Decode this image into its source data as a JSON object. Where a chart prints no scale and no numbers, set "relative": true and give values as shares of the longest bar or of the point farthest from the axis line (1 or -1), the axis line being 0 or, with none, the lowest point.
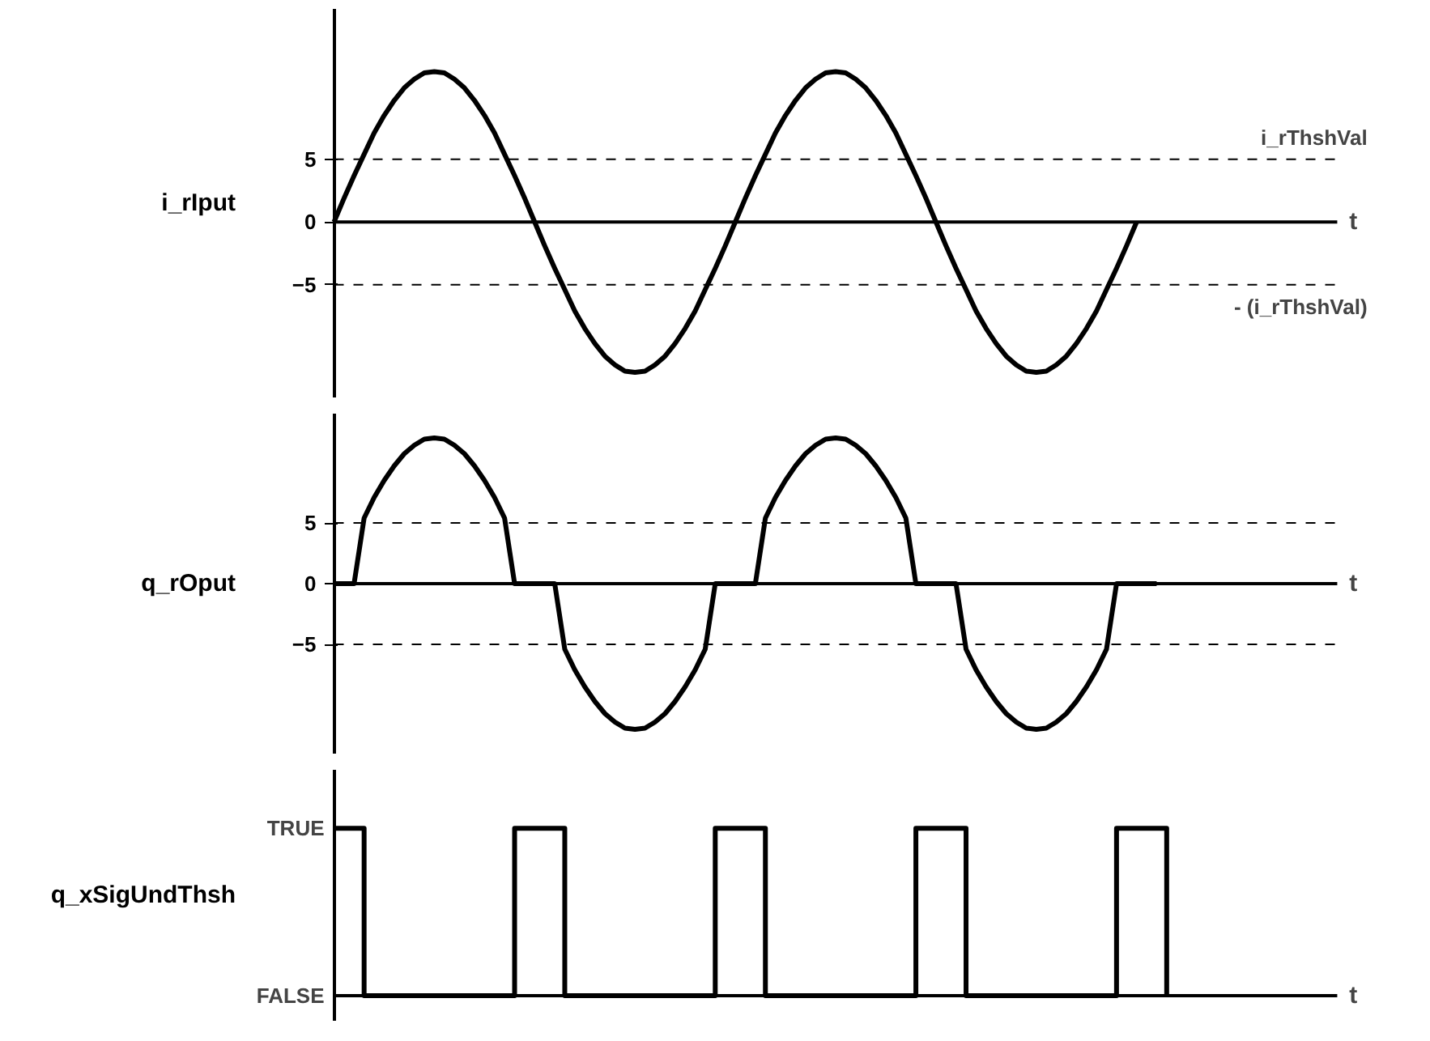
{
  "chart_data": [
    {
      "type": "line",
      "ylabel": "i_rIput",
      "xlabel": "t",
      "tick_labels": "y",
      "ylim": [
        -14,
        17
      ],
      "yticks": [
        -5,
        0,
        5
      ],
      "categories": [
        null,
        null,
        null,
        null,
        null,
        null,
        null,
        null,
        null,
        null,
        null,
        null,
        null,
        null,
        null,
        null,
        null,
        null,
        null,
        null,
        null,
        null,
        null,
        null,
        null,
        null,
        null,
        null,
        null,
        null,
        null,
        null,
        null,
        null,
        null,
        null,
        null,
        null,
        null,
        null,
        null,
        null,
        null,
        null,
        null,
        null,
        null,
        null,
        null,
        null,
        null,
        null,
        null,
        null,
        null,
        null,
        null,
        null,
        null,
        null,
        null,
        null,
        null,
        null,
        null,
        null,
        null,
        null,
        null,
        null,
        null,
        null,
        null,
        null,
        null,
        null,
        null,
        null,
        null,
        null,
        null,
        null,
        null,
        null,
        null,
        null,
        null,
        null,
        null,
        null,
        null,
        null,
        null,
        null,
        null,
        null,
        null,
        null,
        null,
        null
      ],
      "series": [
        {
          "color": "#000000",
          "values": [
            0,
            1.9,
            3.7,
            5.4,
            7.1,
            8.5,
            9.7,
            10.7,
            11.4,
            11.9,
            12,
            11.9,
            11.4,
            10.7,
            9.7,
            8.5,
            7.1,
            5.4,
            3.7,
            1.9,
            0,
            -1.9,
            -3.7,
            -5.4,
            -7.1,
            -8.5,
            -9.7,
            -10.7,
            -11.4,
            -11.9,
            -12,
            -11.9,
            -11.4,
            -10.7,
            -9.7,
            -8.5,
            -7.1,
            -5.4,
            -3.7,
            -1.9,
            0,
            1.9,
            3.7,
            5.4,
            7.1,
            8.5,
            9.7,
            10.7,
            11.4,
            11.9,
            12,
            11.9,
            11.4,
            10.7,
            9.7,
            8.5,
            7.1,
            5.4,
            3.7,
            1.9,
            0,
            -1.9,
            -3.7,
            -5.4,
            -7.1,
            -8.5,
            -9.7,
            -10.7,
            -11.4,
            -11.9,
            -12,
            -11.9,
            -11.4,
            -10.7,
            -9.7,
            -8.5,
            -7.1,
            -5.4,
            -3.7,
            -1.9,
            0,
            null,
            null,
            null,
            null,
            null,
            null,
            null,
            null,
            null,
            null,
            null,
            null,
            null,
            null,
            null,
            null,
            null,
            null,
            null
          ]
        }
      ],
      "ref_lines": [
        {
          "axis": "y",
          "value": 5,
          "line_style": "dashed"
        },
        {
          "axis": "y",
          "value": -5,
          "line_style": "dashed"
        }
      ],
      "annotations": [
        {
          "text": "i_rThshVal",
          "y": 5
        },
        {
          "text": "- (i_rThshVal)",
          "y": -5
        }
      ]
    },
    {
      "type": "line",
      "ylabel": "q_rOput",
      "xlabel": "t",
      "tick_labels": "y",
      "ylim": [
        -14,
        14
      ],
      "yticks": [
        -5,
        0,
        5
      ],
      "categories": [
        null,
        null,
        null,
        null,
        null,
        null,
        null,
        null,
        null,
        null,
        null,
        null,
        null,
        null,
        null,
        null,
        null,
        null,
        null,
        null,
        null,
        null,
        null,
        null,
        null,
        null,
        null,
        null,
        null,
        null,
        null,
        null,
        null,
        null,
        null,
        null,
        null,
        null,
        null,
        null,
        null,
        null,
        null,
        null,
        null,
        null,
        null,
        null,
        null,
        null,
        null,
        null,
        null,
        null,
        null,
        null,
        null,
        null,
        null,
        null,
        null,
        null,
        null,
        null,
        null,
        null,
        null,
        null,
        null,
        null,
        null,
        null,
        null,
        null,
        null,
        null,
        null,
        null,
        null,
        null,
        null,
        null,
        null,
        null,
        null,
        null,
        null,
        null,
        null,
        null,
        null,
        null,
        null,
        null,
        null,
        null,
        null,
        null,
        null,
        null
      ],
      "series": [
        {
          "color": "#000000",
          "values": [
            0,
            0,
            0,
            5.4,
            7.1,
            8.5,
            9.7,
            10.7,
            11.4,
            11.9,
            12,
            11.9,
            11.4,
            10.7,
            9.7,
            8.5,
            7.1,
            5.4,
            0,
            0,
            0,
            0,
            0,
            -5.4,
            -7.1,
            -8.5,
            -9.7,
            -10.7,
            -11.4,
            -11.9,
            -12,
            -11.9,
            -11.4,
            -10.7,
            -9.7,
            -8.5,
            -7.1,
            -5.4,
            0,
            0,
            0,
            0,
            0,
            5.4,
            7.1,
            8.5,
            9.7,
            10.7,
            11.4,
            11.9,
            12,
            11.9,
            11.4,
            10.7,
            9.7,
            8.5,
            7.1,
            5.4,
            0,
            0,
            0,
            0,
            0,
            -5.4,
            -7.1,
            -8.5,
            -9.7,
            -10.7,
            -11.4,
            -11.9,
            -12,
            -11.9,
            -11.4,
            -10.7,
            -9.7,
            -8.5,
            -7.1,
            -5.4,
            0,
            0,
            0,
            0,
            0,
            null,
            null,
            null,
            null,
            null,
            null,
            null,
            null,
            null,
            null,
            null,
            null,
            null,
            null,
            null,
            null,
            null
          ]
        }
      ],
      "ref_lines": [
        {
          "axis": "y",
          "value": 5,
          "line_style": "dashed"
        },
        {
          "axis": "y",
          "value": -5,
          "line_style": "dashed"
        }
      ]
    },
    {
      "type": "step",
      "ylabel": "q_xSigUndThsh",
      "xlabel": "t",
      "relative": true,
      "tick_labels": false,
      "annotations": [
        "TRUE",
        "FALSE"
      ],
      "categories": [
        null,
        null,
        null,
        null,
        null,
        null,
        null,
        null,
        null,
        null,
        null,
        null,
        null,
        null,
        null,
        null,
        null,
        null,
        null,
        null,
        null,
        null,
        null,
        null,
        null,
        null,
        null,
        null,
        null,
        null,
        null,
        null,
        null,
        null,
        null,
        null,
        null,
        null,
        null,
        null,
        null,
        null,
        null,
        null,
        null,
        null,
        null,
        null,
        null,
        null,
        null,
        null,
        null,
        null,
        null,
        null,
        null,
        null,
        null,
        null,
        null,
        null,
        null,
        null,
        null,
        null,
        null,
        null,
        null,
        null,
        null,
        null,
        null,
        null,
        null,
        null,
        null,
        null,
        null,
        null,
        null,
        null,
        null,
        null,
        null,
        null,
        null,
        null,
        null,
        null,
        null,
        null,
        null,
        null,
        null,
        null,
        null,
        null,
        null,
        null
      ],
      "series": [
        {
          "color": "#000000",
          "values": [
            1,
            1,
            1,
            0,
            0,
            0,
            0,
            0,
            0,
            0,
            0,
            0,
            0,
            0,
            0,
            0,
            0,
            0,
            1,
            1,
            1,
            1,
            1,
            0,
            0,
            0,
            0,
            0,
            0,
            0,
            0,
            0,
            0,
            0,
            0,
            0,
            0,
            0,
            1,
            1,
            1,
            1,
            1,
            0,
            0,
            0,
            0,
            0,
            0,
            0,
            0,
            0,
            0,
            0,
            0,
            0,
            0,
            0,
            1,
            1,
            1,
            1,
            1,
            0,
            0,
            0,
            0,
            0,
            0,
            0,
            0,
            0,
            0,
            0,
            0,
            0,
            0,
            0,
            1,
            1,
            1,
            1,
            1,
            0,
            null,
            null,
            null,
            null,
            null,
            null,
            null,
            null,
            null,
            null,
            null,
            null,
            null,
            null,
            null,
            null
          ]
        }
      ]
    }
  ]
}
